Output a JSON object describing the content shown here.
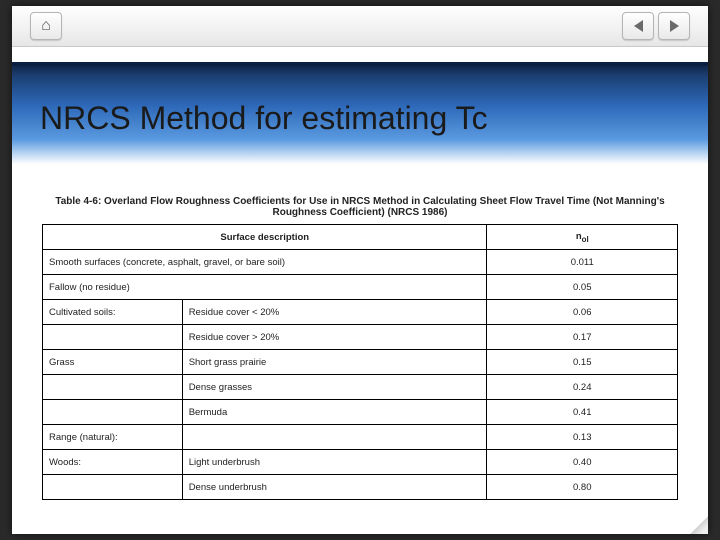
{
  "toolbar": {
    "home_label": "Home",
    "prev_label": "Previous slide",
    "next_label": "Next slide"
  },
  "banner": {
    "title": "NRCS Method for estimating Tc",
    "gradient_top": "#10284a",
    "gradient_mid": "#2d68b8",
    "gradient_light": "#5a9ae0"
  },
  "table": {
    "caption": "Table 4-6: Overland Flow Roughness Coefficients for Use in NRCS Method in Calculating Sheet Flow Travel Time (Not Manning's Roughness Coefficient) (NRCS 1986)",
    "col_desc_header": "Surface description",
    "col_val_header": "n_ol",
    "rows": [
      {
        "group": "",
        "detail": "Smooth surfaces (concrete, asphalt, gravel, or bare soil)",
        "span": "full",
        "value": "0.011"
      },
      {
        "group": "",
        "detail": "Fallow (no residue)",
        "span": "full",
        "value": "0.05"
      },
      {
        "group": "Cultivated soils:",
        "detail": "Residue cover < 20%",
        "value": "0.06"
      },
      {
        "group": "",
        "detail": "Residue cover > 20%",
        "value": "0.17"
      },
      {
        "group": "Grass",
        "detail": "Short grass prairie",
        "value": "0.15"
      },
      {
        "group": "",
        "detail": "Dense grasses",
        "value": "0.24"
      },
      {
        "group": "",
        "detail": "Bermuda",
        "value": "0.41"
      },
      {
        "group": "Range (natural):",
        "detail": "",
        "value": "0.13"
      },
      {
        "group": "Woods:",
        "detail": "Light underbrush",
        "value": "0.40"
      },
      {
        "group": "",
        "detail": "Dense underbrush",
        "value": "0.80"
      }
    ],
    "border_color": "#000000",
    "font_size_pt": 7.5
  },
  "colors": {
    "page_bg": "#2a2a2a",
    "slide_bg": "#ffffff",
    "toolbar_border": "#c9c9c9"
  }
}
